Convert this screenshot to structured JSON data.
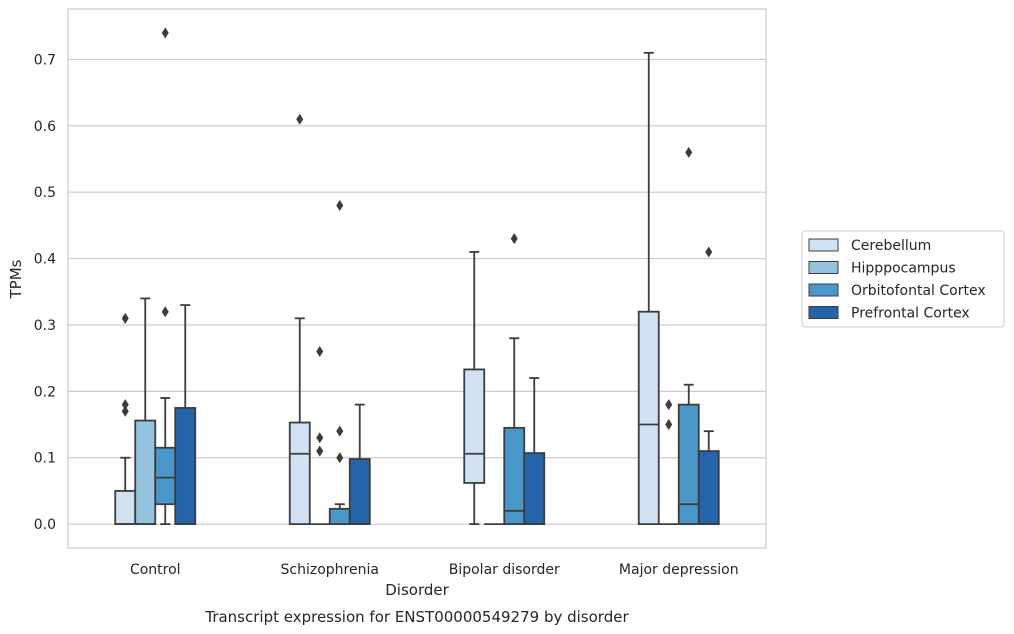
{
  "chart_data": {
    "type": "box",
    "title": "",
    "caption": "Transcript expression for ENST00000549279 by disorder",
    "xlabel": "Disorder",
    "ylabel": "TPMs",
    "ylim": [
      -0.036,
      0.776
    ],
    "yticks": [
      0.0,
      0.1,
      0.2,
      0.3,
      0.4,
      0.5,
      0.6,
      0.7
    ],
    "ytick_labels": [
      "0.0",
      "0.1",
      "0.2",
      "0.3",
      "0.4",
      "0.5",
      "0.6",
      "0.7"
    ],
    "grid": "horizontal",
    "legend_position": "right",
    "categories": [
      "Control",
      "Schizophrenia",
      "Bipolar disorder",
      "Major depression"
    ],
    "series": [
      {
        "name": "Cerebellum",
        "color": "#d0e1f2",
        "boxes": [
          {
            "q1": 0.0,
            "median": 0.0,
            "q3": 0.05,
            "whisker_low": 0.0,
            "whisker_high": 0.1,
            "outliers": [
              0.17,
              0.18,
              0.31
            ]
          },
          {
            "q1": 0.0,
            "median": 0.106,
            "q3": 0.153,
            "whisker_low": 0.0,
            "whisker_high": 0.31,
            "outliers": [
              0.61
            ]
          },
          {
            "q1": 0.062,
            "median": 0.106,
            "q3": 0.233,
            "whisker_low": 0.0,
            "whisker_high": 0.41,
            "outliers": []
          },
          {
            "q1": 0.0,
            "median": 0.15,
            "q3": 0.32,
            "whisker_low": 0.0,
            "whisker_high": 0.71,
            "outliers": []
          }
        ]
      },
      {
        "name": "Hipppocampus",
        "color": "#94c4df",
        "boxes": [
          {
            "q1": 0.0,
            "median": 0.0,
            "q3": 0.156,
            "whisker_low": 0.0,
            "whisker_high": 0.34,
            "outliers": []
          },
          {
            "q1": 0.0,
            "median": 0.0,
            "q3": 0.0,
            "whisker_low": 0.0,
            "whisker_high": 0.0,
            "outliers": [
              0.11,
              0.13,
              0.26
            ]
          },
          {
            "q1": 0.0,
            "median": 0.0,
            "q3": 0.0,
            "whisker_low": 0.0,
            "whisker_high": 0.0,
            "outliers": []
          },
          {
            "q1": 0.0,
            "median": 0.0,
            "q3": 0.0,
            "whisker_low": 0.0,
            "whisker_high": 0.0,
            "outliers": [
              0.15,
              0.18
            ]
          }
        ]
      },
      {
        "name": "Orbitofontal Cortex",
        "color": "#4a98c9",
        "boxes": [
          {
            "q1": 0.03,
            "median": 0.07,
            "q3": 0.115,
            "whisker_low": 0.0,
            "whisker_high": 0.19,
            "outliers": [
              0.32,
              0.74
            ]
          },
          {
            "q1": 0.0,
            "median": 0.0,
            "q3": 0.023,
            "whisker_low": 0.0,
            "whisker_high": 0.03,
            "outliers": [
              0.1,
              0.14,
              0.48
            ]
          },
          {
            "q1": 0.0,
            "median": 0.02,
            "q3": 0.145,
            "whisker_low": 0.0,
            "whisker_high": 0.28,
            "outliers": [
              0.43
            ]
          },
          {
            "q1": 0.0,
            "median": 0.03,
            "q3": 0.18,
            "whisker_low": 0.0,
            "whisker_high": 0.21,
            "outliers": [
              0.56
            ]
          }
        ]
      },
      {
        "name": "Prefrontal Cortex",
        "color": "#2464ab",
        "boxes": [
          {
            "q1": 0.0,
            "median": 0.0,
            "q3": 0.175,
            "whisker_low": 0.0,
            "whisker_high": 0.33,
            "outliers": []
          },
          {
            "q1": 0.0,
            "median": 0.0,
            "q3": 0.098,
            "whisker_low": 0.0,
            "whisker_high": 0.18,
            "outliers": []
          },
          {
            "q1": 0.0,
            "median": 0.0,
            "q3": 0.107,
            "whisker_low": 0.0,
            "whisker_high": 0.22,
            "outliers": []
          },
          {
            "q1": 0.0,
            "median": 0.0,
            "q3": 0.11,
            "whisker_low": 0.0,
            "whisker_high": 0.14,
            "outliers": [
              0.41
            ]
          }
        ]
      }
    ]
  }
}
